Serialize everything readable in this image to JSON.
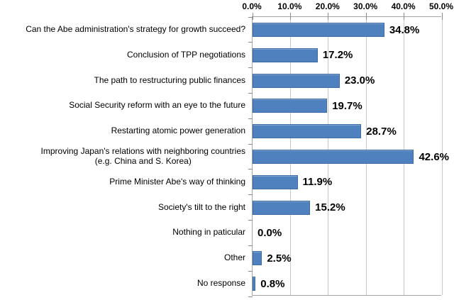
{
  "chart_data": {
    "type": "bar",
    "orientation": "horizontal",
    "title": "",
    "xlabel": "",
    "ylabel": "",
    "xlim": [
      0,
      50
    ],
    "axis_position": "top",
    "grid": true,
    "legend": false,
    "x_tick_labels": [
      "0.0%",
      "10.0%",
      "20.0%",
      "30.0%",
      "40.0%",
      "50.0%"
    ],
    "categories": [
      "Can the Abe administration's strategy for growth succeed?",
      "Conclusion of TPP negotiations",
      "The path to restructuring public finances",
      "Social Security reform with an eye to the future",
      "Restarting atomic power generation",
      "Improving Japan's relations with neighboring countries (e.g. China and S. Korea)",
      "Prime Minister Abe's way of thinking",
      "Society's tilt to the right",
      "Nothing in paticular",
      "Other",
      "No response"
    ],
    "category_display_lines": [
      [
        "Can the Abe administration's strategy for growth succeed?"
      ],
      [
        "Conclusion of TPP negotiations"
      ],
      [
        "The path to restructuring public finances"
      ],
      [
        "Social Security reform with an eye to the future"
      ],
      [
        "Restarting atomic power generation"
      ],
      [
        "Improving Japan's relations with neighboring countries",
        "(e.g. China and S. Korea)"
      ],
      [
        "Prime Minister Abe's way of thinking"
      ],
      [
        "Society's tilt to the right"
      ],
      [
        "Nothing in paticular"
      ],
      [
        "Other"
      ],
      [
        "No response"
      ]
    ],
    "values": [
      34.8,
      17.2,
      23.0,
      19.7,
      28.7,
      42.6,
      11.9,
      15.2,
      0.0,
      2.5,
      0.8
    ],
    "data_labels": [
      "34.8%",
      "17.2%",
      "23.0%",
      "19.7%",
      "28.7%",
      "42.6%",
      "11.9%",
      "15.2%",
      "0.0%",
      "2.5%",
      "0.8%"
    ],
    "colors": {
      "bar_fill": "#4E81BD",
      "bar_border": "#3F6DA3",
      "gridline": "#C9C9C9",
      "axis_line": "#A6A6A6",
      "tick": "#898989",
      "text": "#000000",
      "background": "#FFFFFF"
    }
  }
}
